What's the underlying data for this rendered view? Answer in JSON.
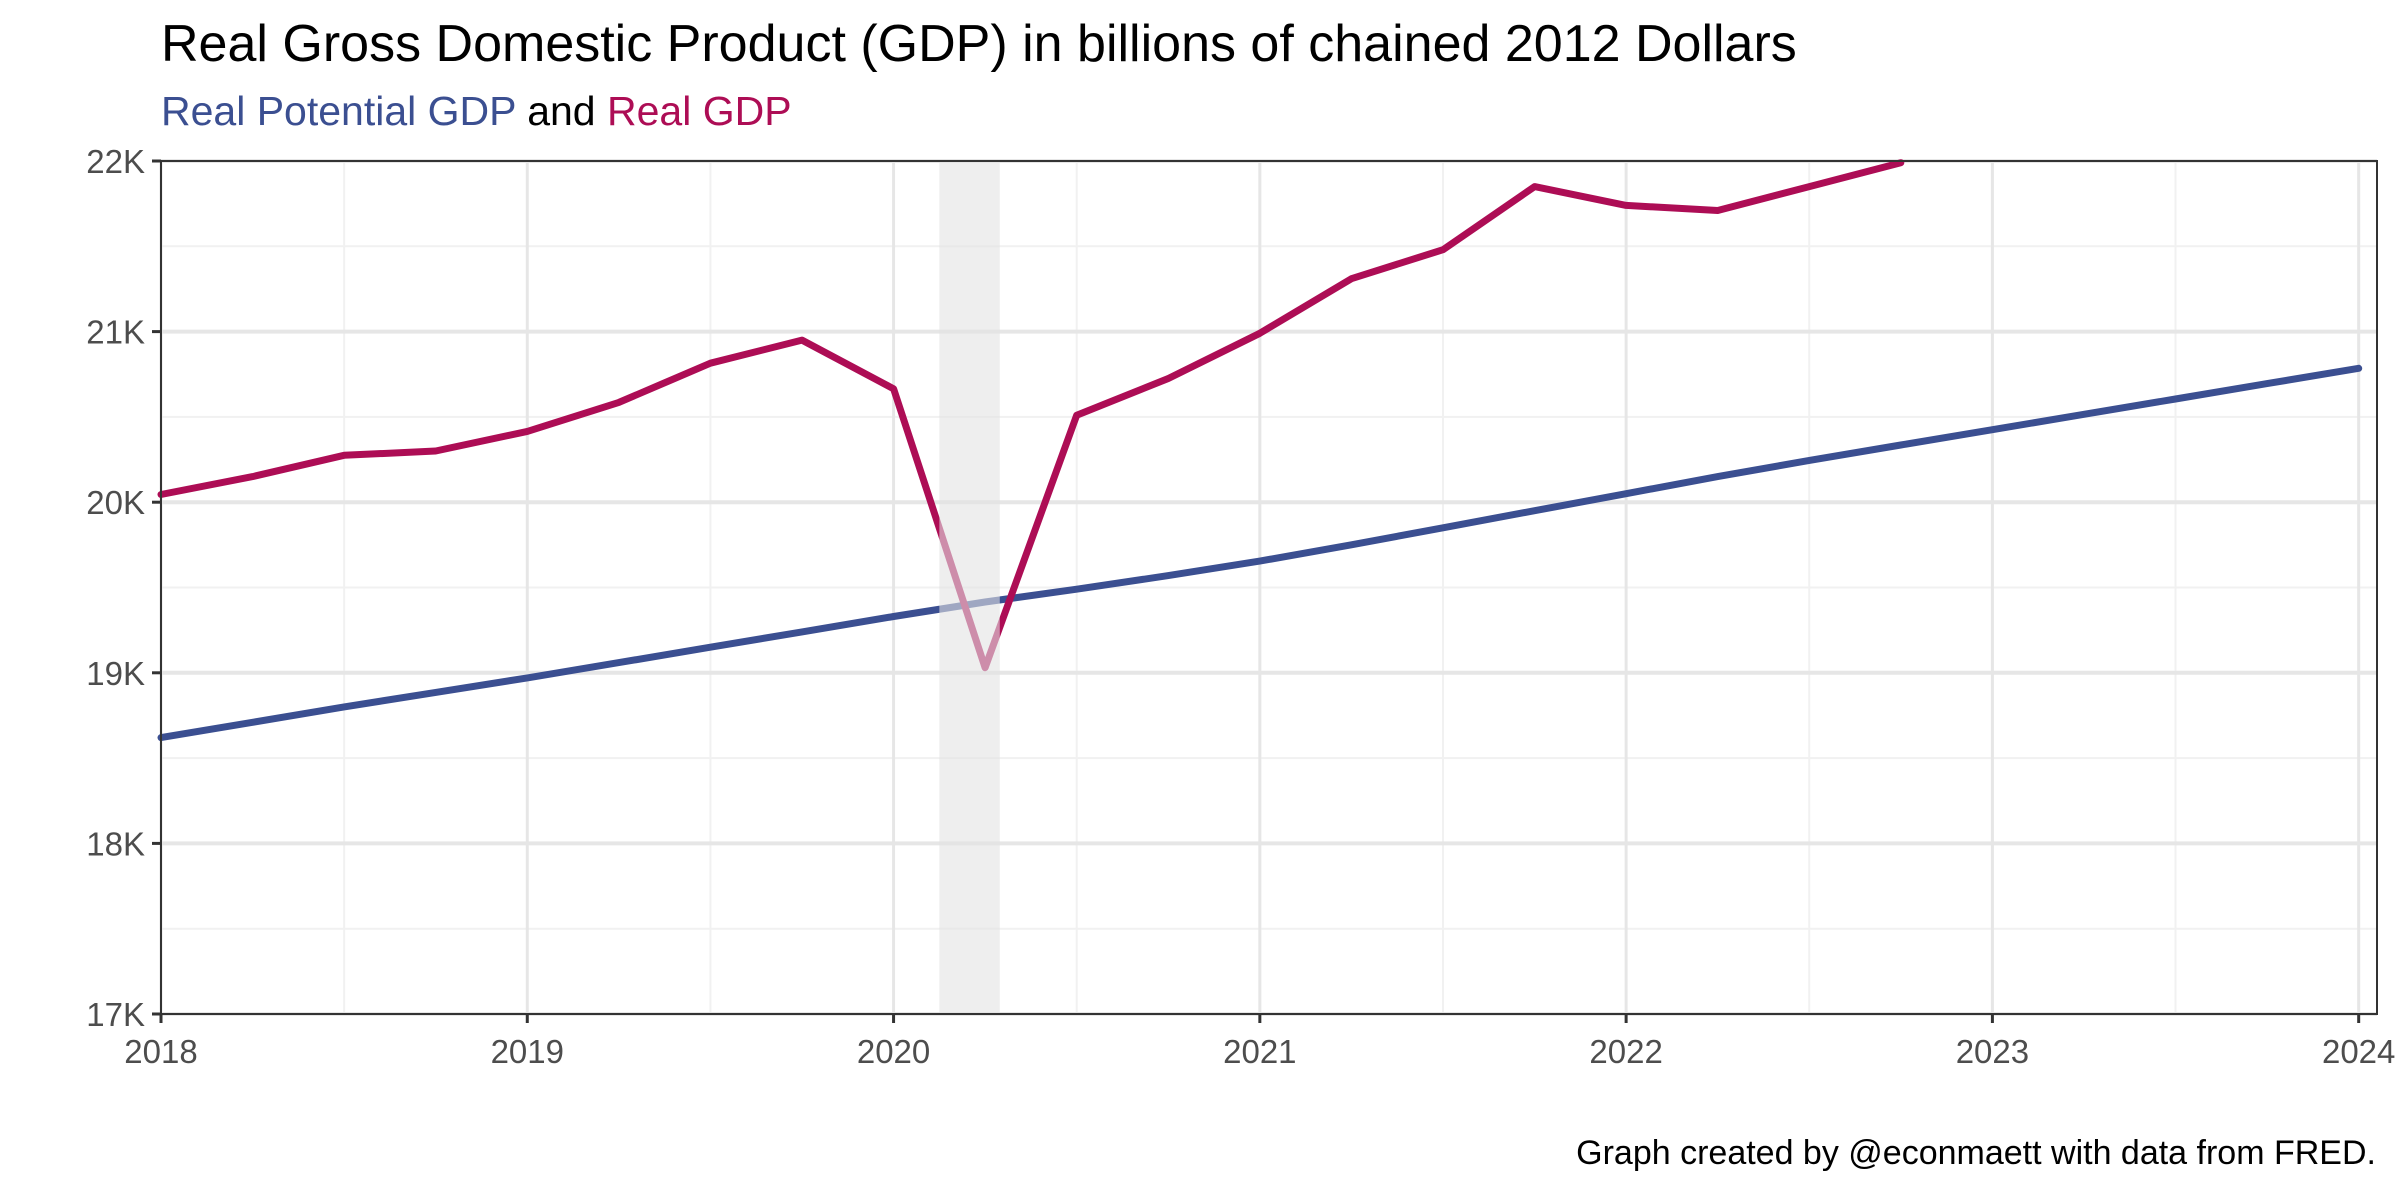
{
  "title": "Real Gross Domestic Product (GDP) in billions of chained 2012 Dollars",
  "subtitle": {
    "series1": "Real Potential GDP",
    "connector": "and",
    "series2": "Real GDP"
  },
  "caption": "Graph created by @econmaett with data from FRED.",
  "chart_data": {
    "type": "line",
    "xlabel": "",
    "ylabel": "",
    "xlim": [
      2018.0,
      2024.05
    ],
    "ylim": [
      17000,
      22000
    ],
    "x_ticks": [
      2018,
      2019,
      2020,
      2021,
      2022,
      2023,
      2024
    ],
    "x_tick_labels": [
      "2018",
      "2019",
      "2020",
      "2021",
      "2022",
      "2023",
      "2024"
    ],
    "y_ticks": [
      17000,
      18000,
      19000,
      20000,
      21000,
      22000
    ],
    "y_tick_labels": [
      "17K",
      "18K",
      "19K",
      "20K",
      "21K",
      "22K"
    ],
    "grid": true,
    "recession_shading": [
      {
        "start": 2020.125,
        "end": 2020.29
      }
    ],
    "colors": {
      "recession": "#e3e3e3",
      "grid_major": "#e6e6e6",
      "grid_minor": "#f1f1f1"
    },
    "series": [
      {
        "name": "Real Potential GDP",
        "color": "#3b4f91",
        "x": [
          2018.0,
          2018.25,
          2018.5,
          2018.75,
          2019.0,
          2019.25,
          2019.5,
          2019.75,
          2020.0,
          2020.25,
          2020.5,
          2020.75,
          2021.0,
          2021.25,
          2021.5,
          2021.75,
          2022.0,
          2022.25,
          2022.5,
          2022.75,
          2023.0,
          2023.25,
          2023.5,
          2023.75,
          2024.0
        ],
        "values": [
          18620,
          18710,
          18800,
          18885,
          18970,
          19060,
          19150,
          19240,
          19330,
          19415,
          19490,
          19570,
          19655,
          19750,
          19850,
          19950,
          20050,
          20150,
          20245,
          20335,
          20425,
          20515,
          20605,
          20695,
          20785
        ]
      },
      {
        "name": "Real GDP",
        "color": "#ad0d55",
        "x": [
          2018.0,
          2018.25,
          2018.5,
          2018.75,
          2019.0,
          2019.25,
          2019.5,
          2019.75,
          2020.0,
          2020.25,
          2020.5,
          2020.75,
          2021.0,
          2021.25,
          2021.5,
          2021.75,
          2022.0,
          2022.25,
          2022.5,
          2022.75
        ],
        "values": [
          20045,
          20150,
          20275,
          20300,
          20415,
          20585,
          20815,
          20950,
          20665,
          19030,
          20510,
          20725,
          20990,
          21310,
          21480,
          21850,
          21740,
          21710,
          21850,
          21990
        ]
      }
    ]
  }
}
